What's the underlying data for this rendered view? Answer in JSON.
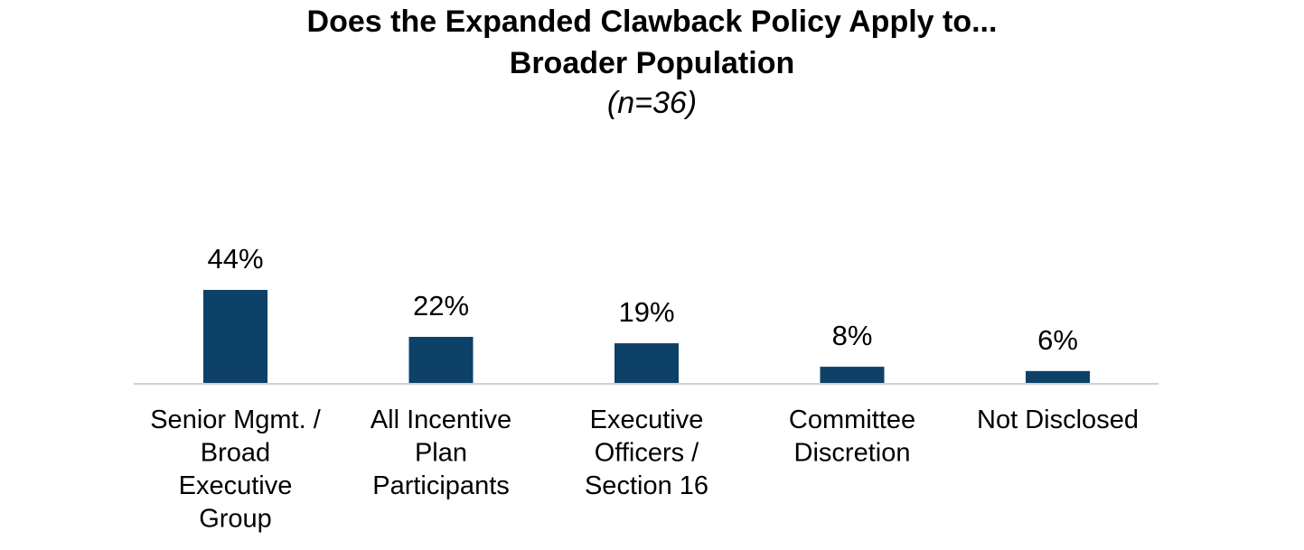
{
  "chart_data": {
    "type": "bar",
    "title_line1": "Does the Expanded Clawback Policy Apply to...",
    "title_line2": "Broader Population",
    "subtitle": "(n=36)",
    "categories": [
      [
        "Senior Mgmt. /",
        "Broad",
        "Executive",
        "Group"
      ],
      [
        "All Incentive",
        "Plan",
        "Participants"
      ],
      [
        "Executive",
        "Officers /",
        "Section 16"
      ],
      [
        "Committee",
        "Discretion"
      ],
      [
        "Not Disclosed"
      ]
    ],
    "values": [
      44,
      22,
      19,
      8,
      6
    ],
    "value_labels": [
      "44%",
      "22%",
      "19%",
      "8%",
      "6%"
    ],
    "ylim": [
      0,
      44
    ],
    "bar_color": "#0e4168",
    "axis_color": "#d0d0d0",
    "grid": false
  }
}
